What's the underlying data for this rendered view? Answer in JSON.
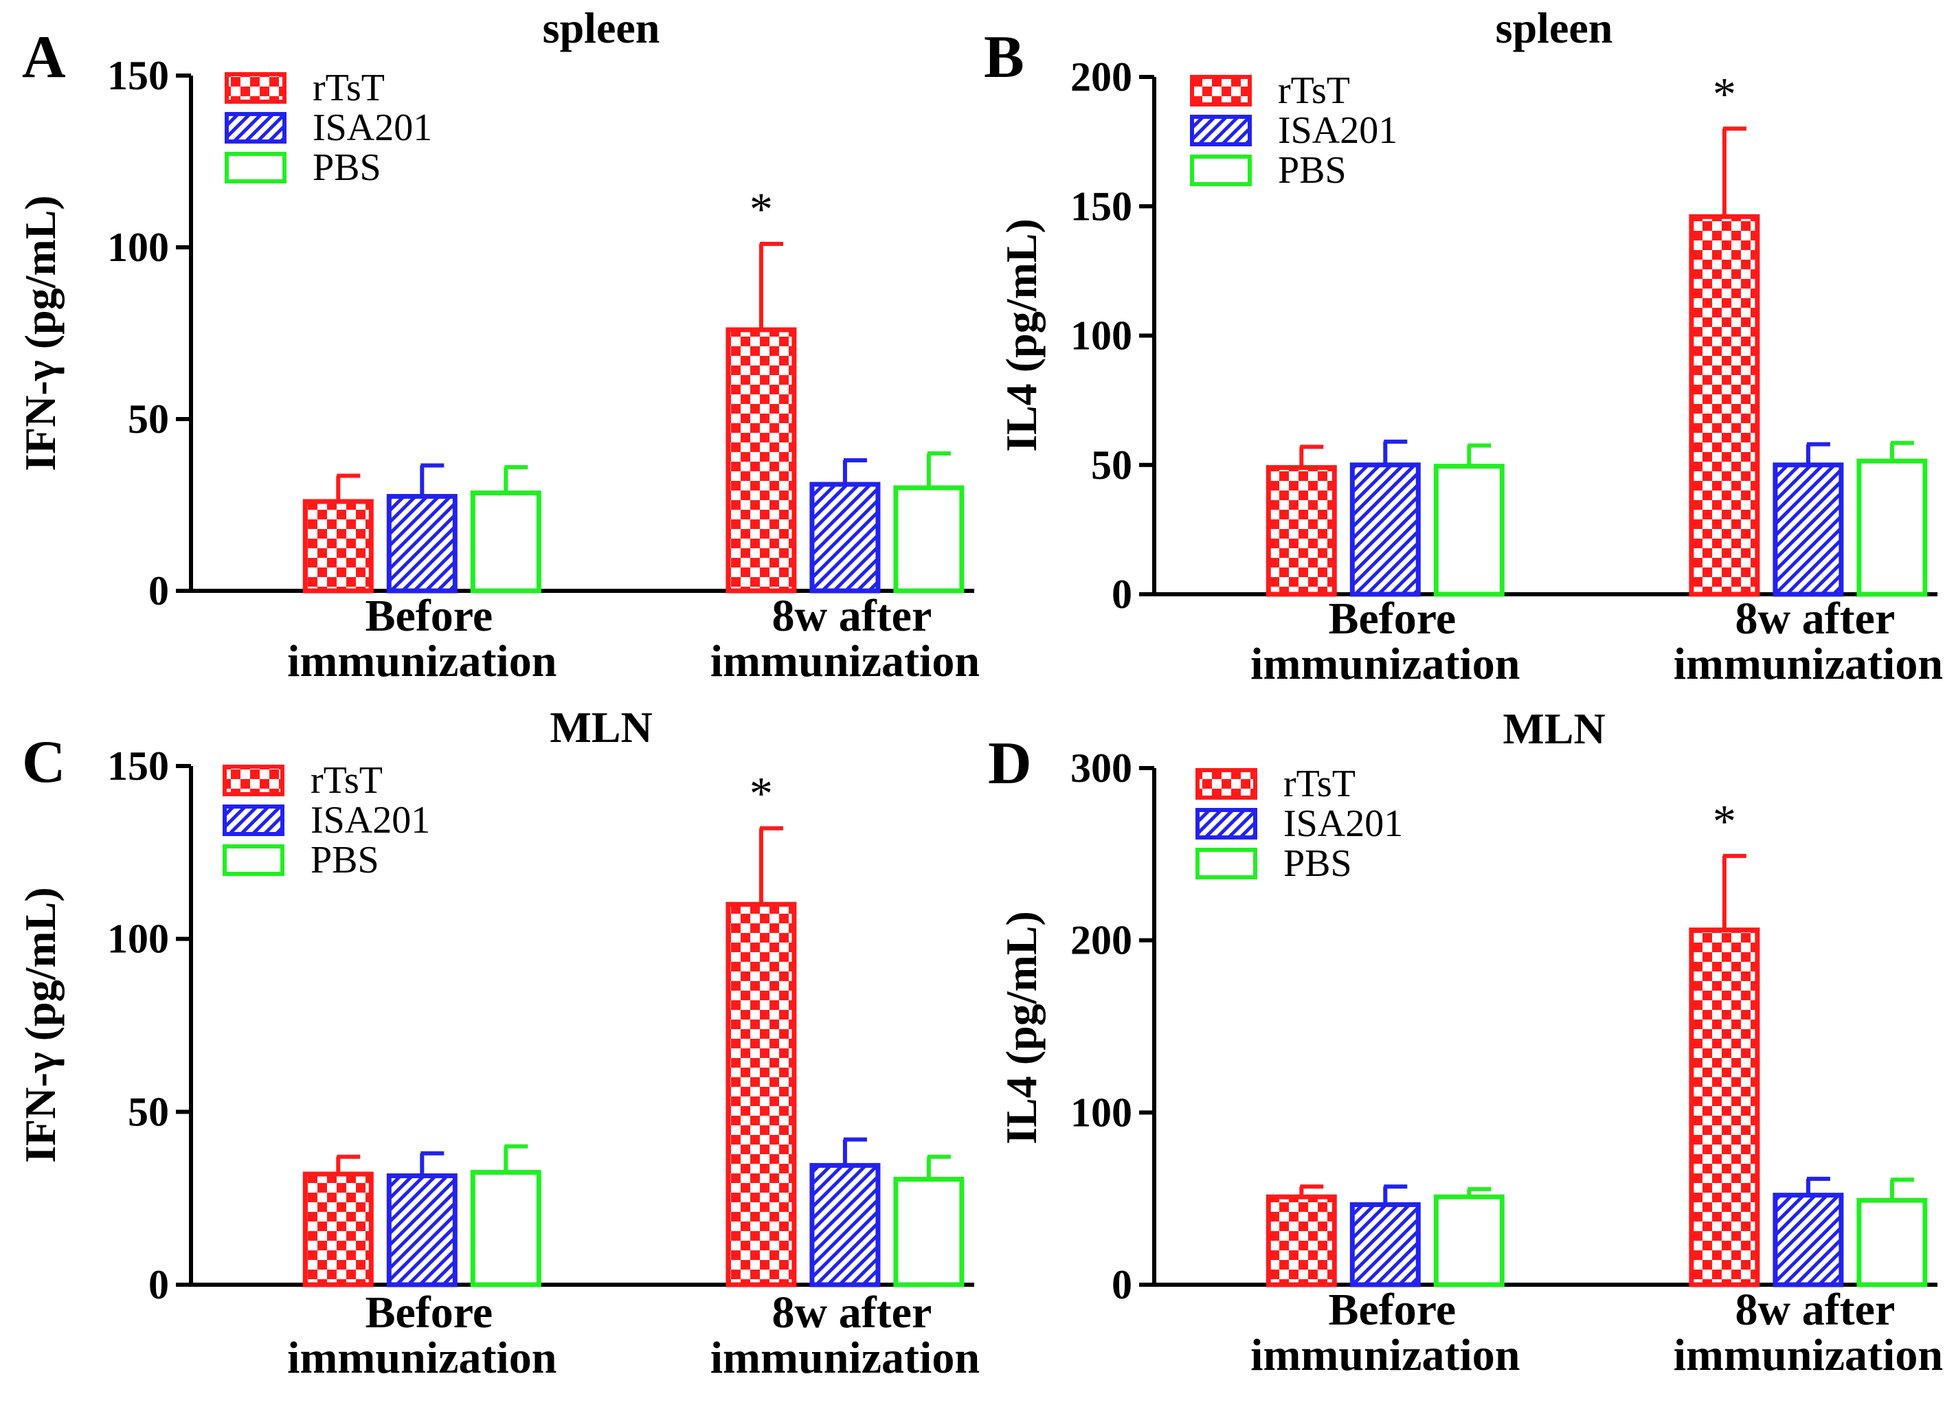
{
  "colors": {
    "rTsT": "#ff1a1a",
    "ISA201": "#2222ee",
    "PBS": "#22ee22",
    "axis": "#000000"
  },
  "legend_items": [
    "rTsT",
    "ISA201",
    "PBS"
  ],
  "chart_data": [
    {
      "panel": "A",
      "type": "bar",
      "title": "spleen",
      "ylabel": "IFN-γ (pg/mL)",
      "ylim": [
        0,
        150
      ],
      "yticks": [
        0,
        50,
        100,
        150
      ],
      "categories": [
        [
          "Before",
          "immunization"
        ],
        [
          "8w after",
          "immunization"
        ]
      ],
      "series": [
        {
          "name": "rTsT",
          "values": [
            26,
            76
          ],
          "errors": [
            7.5,
            25
          ]
        },
        {
          "name": "ISA201",
          "values": [
            27.5,
            31
          ],
          "errors": [
            9,
            7
          ]
        },
        {
          "name": "PBS",
          "values": [
            28.5,
            30
          ],
          "errors": [
            7.5,
            10
          ]
        }
      ],
      "significance": [
        "",
        "*"
      ]
    },
    {
      "panel": "B",
      "type": "bar",
      "title": "spleen",
      "ylabel": "IL4 (pg/mL)",
      "ylim": [
        0,
        200
      ],
      "yticks": [
        0,
        50,
        100,
        150,
        200
      ],
      "categories": [
        [
          "Before",
          "immunization"
        ],
        [
          "8w after",
          "immunization"
        ]
      ],
      "series": [
        {
          "name": "rTsT",
          "values": [
            49,
            146
          ],
          "errors": [
            8,
            34
          ]
        },
        {
          "name": "ISA201",
          "values": [
            50,
            50
          ],
          "errors": [
            9,
            8
          ]
        },
        {
          "name": "PBS",
          "values": [
            49.5,
            51.5
          ],
          "errors": [
            8,
            7
          ]
        }
      ],
      "significance": [
        "",
        "*"
      ]
    },
    {
      "panel": "C",
      "type": "bar",
      "title": "MLN",
      "ylabel": "IFN-γ (pg/mL)",
      "ylim": [
        0,
        150
      ],
      "yticks": [
        0,
        50,
        100,
        150
      ],
      "categories": [
        [
          "Before",
          "immunization"
        ],
        [
          "8w after",
          "immunization"
        ]
      ],
      "series": [
        {
          "name": "rTsT",
          "values": [
            32,
            110
          ],
          "errors": [
            5,
            22
          ]
        },
        {
          "name": "ISA201",
          "values": [
            31.5,
            34.5
          ],
          "errors": [
            6.5,
            7.5
          ]
        },
        {
          "name": "PBS",
          "values": [
            32.5,
            30.5
          ],
          "errors": [
            7.5,
            6.5
          ]
        }
      ],
      "significance": [
        "",
        "*"
      ]
    },
    {
      "panel": "D",
      "type": "bar",
      "title": "MLN",
      "ylabel": "IL4 (pg/mL)",
      "ylim": [
        0,
        300
      ],
      "yticks": [
        0,
        100,
        200,
        300
      ],
      "categories": [
        [
          "Before",
          "immunization"
        ],
        [
          "8w after",
          "immunization"
        ]
      ],
      "series": [
        {
          "name": "rTsT",
          "values": [
            51,
            206
          ],
          "errors": [
            6,
            43
          ]
        },
        {
          "name": "ISA201",
          "values": [
            46.5,
            52
          ],
          "errors": [
            10.5,
            9.5
          ]
        },
        {
          "name": "PBS",
          "values": [
            51,
            49
          ],
          "errors": [
            4.5,
            12
          ]
        }
      ],
      "significance": [
        "",
        "*"
      ]
    }
  ]
}
